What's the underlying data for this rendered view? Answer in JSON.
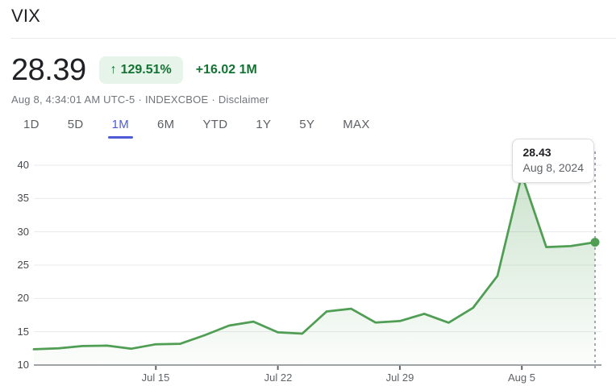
{
  "header": {
    "title": "VIX"
  },
  "quote": {
    "price": "28.39",
    "change_direction_icon": "↑",
    "change_percent": "129.51%",
    "change_absolute": "+16.02",
    "change_period": "1M",
    "timestamp": "Aug 8, 4:34:01 AM UTC-5",
    "separator": "·",
    "exchange": "INDEXCBOE",
    "disclaimer_label": "Disclaimer"
  },
  "range_tabs": {
    "selected": "1M",
    "items": [
      {
        "label": "1D"
      },
      {
        "label": "5D"
      },
      {
        "label": "1M"
      },
      {
        "label": "6M"
      },
      {
        "label": "YTD"
      },
      {
        "label": "1Y"
      },
      {
        "label": "5Y"
      },
      {
        "label": "MAX"
      }
    ]
  },
  "tooltip": {
    "value": "28.43",
    "date": "Aug 8, 2024"
  },
  "chart_data": {
    "type": "area",
    "title": "VIX 1M price history",
    "x": [
      "Jul 8",
      "Jul 9",
      "Jul 10",
      "Jul 11",
      "Jul 12",
      "Jul 15",
      "Jul 16",
      "Jul 17",
      "Jul 18",
      "Jul 19",
      "Jul 22",
      "Jul 23",
      "Jul 24",
      "Jul 25",
      "Jul 26",
      "Jul 29",
      "Jul 30",
      "Jul 31",
      "Aug 1",
      "Aug 2",
      "Aug 5",
      "Aug 6",
      "Aug 7",
      "Aug 8"
    ],
    "values": [
      12.37,
      12.51,
      12.85,
      12.92,
      12.46,
      13.12,
      13.19,
      14.48,
      15.93,
      16.52,
      14.91,
      14.72,
      18.04,
      18.46,
      16.39,
      16.6,
      17.69,
      16.36,
      18.59,
      23.39,
      38.57,
      27.71,
      27.85,
      28.43
    ],
    "ylim": [
      10,
      40
    ],
    "y_ticks": [
      10,
      15,
      20,
      25,
      30,
      35,
      40
    ],
    "y_tick_labels": [
      "40",
      "35",
      "30",
      "25",
      "20",
      "15",
      "10"
    ],
    "x_ticks": [
      {
        "label": "Jul 15",
        "index": 5
      },
      {
        "label": "Jul 22",
        "index": 10
      },
      {
        "label": "Jul 29",
        "index": 15
      },
      {
        "label": "Aug 5",
        "index": 20
      }
    ],
    "grid": true,
    "legend": "none",
    "last_point": {
      "date": "Aug 8, 2024",
      "value": 28.43
    },
    "line_color": "#4f9e53",
    "fill_color_top": "rgba(79,158,83,0.30)",
    "fill_color_bottom": "rgba(79,158,83,0.02)",
    "grid_color": "#e8eaed",
    "axis_color": "#80868b",
    "dashed_line_color": "#8f949a",
    "tick_color": "#5f6368"
  },
  "colors": {
    "accent_green_text": "#137333",
    "badge_background": "#e6f4ea",
    "tab_active": "#4d5cd5",
    "text_primary": "#202124",
    "text_secondary": "#5f6368"
  }
}
